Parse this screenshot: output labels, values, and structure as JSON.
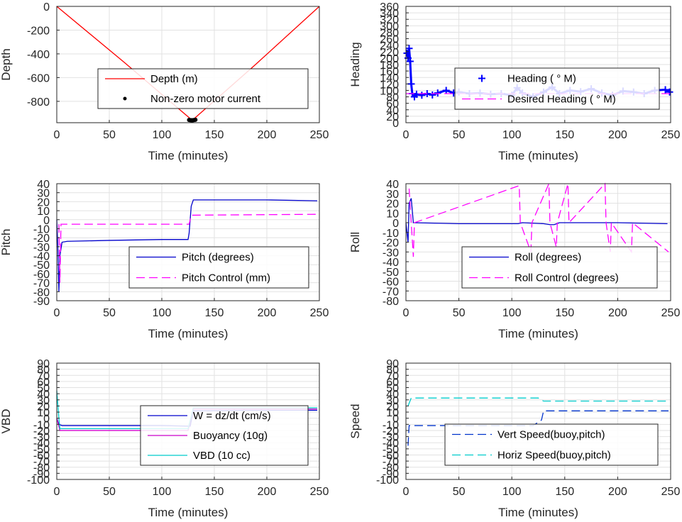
{
  "chart_data": [
    {
      "type": "line",
      "ylabel": "Depth",
      "xlabel": "Time (minutes)",
      "xlim": [
        0,
        250
      ],
      "ylim": [
        -980,
        0
      ],
      "x_ticks": [
        0,
        50,
        100,
        150,
        200,
        250
      ],
      "y_ticks": [
        0,
        -200,
        -400,
        -600,
        -800
      ],
      "grid": true,
      "legend_position": "center",
      "series": [
        {
          "name": "Depth (m)",
          "color": "#ff0000",
          "style": "solid",
          "points": [
            [
              0,
              0
            ],
            [
              64,
              -470
            ],
            [
              129,
              -960
            ],
            [
              188,
              -500
            ],
            [
              250,
              0
            ]
          ]
        },
        {
          "name": "Non-zero motor current",
          "color": "#000000",
          "style": "dot",
          "points": [
            [
              126,
              -957
            ],
            [
              127,
              -958
            ],
            [
              128,
              -959
            ],
            [
              129,
              -960
            ],
            [
              130,
              -958
            ],
            [
              131,
              -957
            ],
            [
              132,
              -955
            ]
          ]
        }
      ]
    },
    {
      "type": "scatter",
      "ylabel": "Heading",
      "xlabel": "Time (minutes)",
      "xlim": [
        0,
        250
      ],
      "ylim": [
        0,
        360
      ],
      "x_ticks": [
        0,
        50,
        100,
        150,
        200,
        250
      ],
      "y_ticks": [
        0,
        20,
        40,
        60,
        80,
        100,
        120,
        140,
        160,
        180,
        200,
        220,
        240,
        260,
        280,
        300,
        320,
        340,
        360
      ],
      "grid": true,
      "legend_position": "center-right",
      "series": [
        {
          "name": "Heading ( ° M)",
          "color": "#0000ff",
          "style": "plus",
          "points": [
            [
              1,
              215
            ],
            [
              2,
              200
            ],
            [
              3,
              230
            ],
            [
              4,
              190
            ],
            [
              5,
              120
            ],
            [
              6,
              90
            ],
            [
              8,
              80
            ],
            [
              10,
              88
            ],
            [
              15,
              85
            ],
            [
              20,
              90
            ],
            [
              25,
              86
            ],
            [
              30,
              92
            ],
            [
              38,
              100
            ],
            [
              45,
              92
            ],
            [
              50,
              95
            ],
            [
              60,
              90
            ],
            [
              70,
              92
            ],
            [
              80,
              88
            ],
            [
              90,
              90
            ],
            [
              100,
              85
            ],
            [
              105,
              108
            ],
            [
              110,
              92
            ],
            [
              120,
              80
            ],
            [
              130,
              95
            ],
            [
              138,
              110
            ],
            [
              145,
              90
            ],
            [
              155,
              100
            ],
            [
              165,
              96
            ],
            [
              175,
              105
            ],
            [
              185,
              92
            ],
            [
              195,
              85
            ],
            [
              205,
              98
            ],
            [
              215,
              95
            ],
            [
              225,
              90
            ],
            [
              235,
              100
            ],
            [
              245,
              102
            ],
            [
              249,
              95
            ]
          ]
        },
        {
          "name": "Desired Heading ( ° M)",
          "color": "#ff00ff",
          "style": "dash",
          "points": [
            [
              0,
              90
            ],
            [
              250,
              90
            ]
          ]
        }
      ]
    },
    {
      "type": "line",
      "ylabel": "Pitch",
      "xlabel": "Time (minutes)",
      "xlim": [
        0,
        250
      ],
      "ylim": [
        -90,
        40
      ],
      "x_ticks": [
        0,
        50,
        100,
        150,
        200,
        250
      ],
      "y_ticks": [
        40,
        30,
        20,
        10,
        0,
        -10,
        -20,
        -30,
        -40,
        -50,
        -60,
        -70,
        -80,
        -90
      ],
      "grid": true,
      "legend_position": "bottom-right",
      "series": [
        {
          "name": "Pitch (degrees)",
          "color": "#0000cc",
          "style": "solid",
          "points": [
            [
              0,
              0
            ],
            [
              1,
              -30
            ],
            [
              2,
              -80
            ],
            [
              3,
              -40
            ],
            [
              5,
              -25
            ],
            [
              10,
              -24
            ],
            [
              50,
              -23
            ],
            [
              100,
              -22
            ],
            [
              125,
              -22
            ],
            [
              126,
              -15
            ],
            [
              127,
              0
            ],
            [
              128,
              15
            ],
            [
              130,
              22
            ],
            [
              150,
              22
            ],
            [
              200,
              22
            ],
            [
              248,
              21
            ]
          ]
        },
        {
          "name": "Pitch Control (mm)",
          "color": "#ff00ff",
          "style": "dash",
          "points": [
            [
              2,
              -5
            ],
            [
              3,
              -70
            ],
            [
              4,
              -5
            ],
            [
              126,
              -5
            ],
            [
              128,
              5
            ],
            [
              250,
              6
            ]
          ]
        }
      ]
    },
    {
      "type": "line",
      "ylabel": "Roll",
      "xlabel": "Time (minutes)",
      "xlim": [
        0,
        250
      ],
      "ylim": [
        -80,
        40
      ],
      "x_ticks": [
        0,
        50,
        100,
        150,
        200,
        250
      ],
      "y_ticks": [
        40,
        30,
        20,
        10,
        0,
        -10,
        -20,
        -30,
        -40,
        -50,
        -60,
        -70,
        -80
      ],
      "grid": true,
      "legend_position": "bottom-right",
      "series": [
        {
          "name": "Roll (degrees)",
          "color": "#0000cc",
          "style": "solid",
          "points": [
            [
              0,
              0
            ],
            [
              2,
              -20
            ],
            [
              3,
              20
            ],
            [
              5,
              25
            ],
            [
              7,
              0
            ],
            [
              50,
              -1
            ],
            [
              100,
              -1
            ],
            [
              106,
              -1
            ],
            [
              110,
              0
            ],
            [
              130,
              -1
            ],
            [
              136,
              -2
            ],
            [
              140,
              -2
            ],
            [
              145,
              0
            ],
            [
              200,
              0
            ],
            [
              247,
              -1
            ]
          ]
        },
        {
          "name": "Roll Control (degrees)",
          "color": "#ff00ff",
          "style": "dash",
          "points": [
            [
              3,
              35
            ],
            [
              5,
              0
            ],
            [
              7,
              -35
            ],
            [
              8,
              0
            ],
            [
              107,
              38
            ],
            [
              108,
              0
            ],
            [
              118,
              -30
            ],
            [
              119,
              0
            ],
            [
              135,
              40
            ],
            [
              136,
              0
            ],
            [
              142,
              -25
            ],
            [
              143,
              0
            ],
            [
              153,
              40
            ],
            [
              154,
              0
            ],
            [
              188,
              40
            ],
            [
              189,
              0
            ],
            [
              193,
              -30
            ],
            [
              194,
              0
            ],
            [
              213,
              -30
            ],
            [
              214,
              0
            ],
            [
              248,
              -30
            ]
          ]
        }
      ]
    },
    {
      "type": "line",
      "ylabel": "VBD",
      "xlabel": "Time (minutes)",
      "xlim": [
        0,
        250
      ],
      "ylim": [
        -100,
        90
      ],
      "x_ticks": [
        0,
        50,
        100,
        150,
        200,
        250
      ],
      "y_ticks": [
        90,
        80,
        70,
        60,
        50,
        40,
        30,
        20,
        10,
        0,
        -10,
        -20,
        -30,
        -40,
        -50,
        -60,
        -70,
        -80,
        -90,
        -100
      ],
      "grid": true,
      "legend_position": "bottom-right",
      "series": [
        {
          "name": "W = dz/dt (cm/s)",
          "color": "#0000cc",
          "style": "solid",
          "points": [
            [
              0,
              0
            ],
            [
              2,
              -10
            ],
            [
              5,
              -12
            ],
            [
              50,
              -12
            ],
            [
              100,
              -12
            ],
            [
              127,
              -13
            ],
            [
              130,
              12
            ],
            [
              180,
              13
            ],
            [
              248,
              13
            ]
          ]
        },
        {
          "name": "Buoyancy (10g)",
          "color": "#cc00cc",
          "style": "solid",
          "points": [
            [
              0,
              0
            ],
            [
              3,
              -20
            ],
            [
              125,
              -20
            ],
            [
              130,
              15
            ],
            [
              248,
              15
            ]
          ]
        },
        {
          "name": "VBD (10 cc)",
          "color": "#00cccc",
          "style": "solid",
          "points": [
            [
              0,
              45
            ],
            [
              2,
              0
            ],
            [
              3,
              -17
            ],
            [
              125,
              -17
            ],
            [
              130,
              17
            ],
            [
              248,
              17
            ]
          ]
        }
      ]
    },
    {
      "type": "line",
      "ylabel": "Speed",
      "xlabel": "Time (minutes)",
      "xlim": [
        0,
        250
      ],
      "ylim": [
        -100,
        90
      ],
      "x_ticks": [
        0,
        50,
        100,
        150,
        200,
        250
      ],
      "y_ticks": [
        90,
        80,
        70,
        60,
        50,
        40,
        30,
        20,
        10,
        0,
        -10,
        -20,
        -30,
        -40,
        -50,
        -60,
        -70,
        -80,
        -90,
        -100
      ],
      "grid": true,
      "legend_position": "bottom-right",
      "series": [
        {
          "name": "Vert Speed(buoy,pitch)",
          "color": "#0033cc",
          "style": "dash",
          "points": [
            [
              2,
              -45
            ],
            [
              3,
              -12
            ],
            [
              10,
              -12
            ],
            [
              120,
              -12
            ],
            [
              128,
              -3
            ],
            [
              130,
              12
            ],
            [
              248,
              12
            ]
          ]
        },
        {
          "name": "Horiz Speed(buoy,pitch)",
          "color": "#00cccc",
          "style": "dash",
          "points": [
            [
              2,
              20
            ],
            [
              5,
              33
            ],
            [
              50,
              33
            ],
            [
              120,
              33
            ],
            [
              125,
              33
            ],
            [
              130,
              28
            ],
            [
              248,
              28
            ]
          ]
        }
      ]
    }
  ]
}
